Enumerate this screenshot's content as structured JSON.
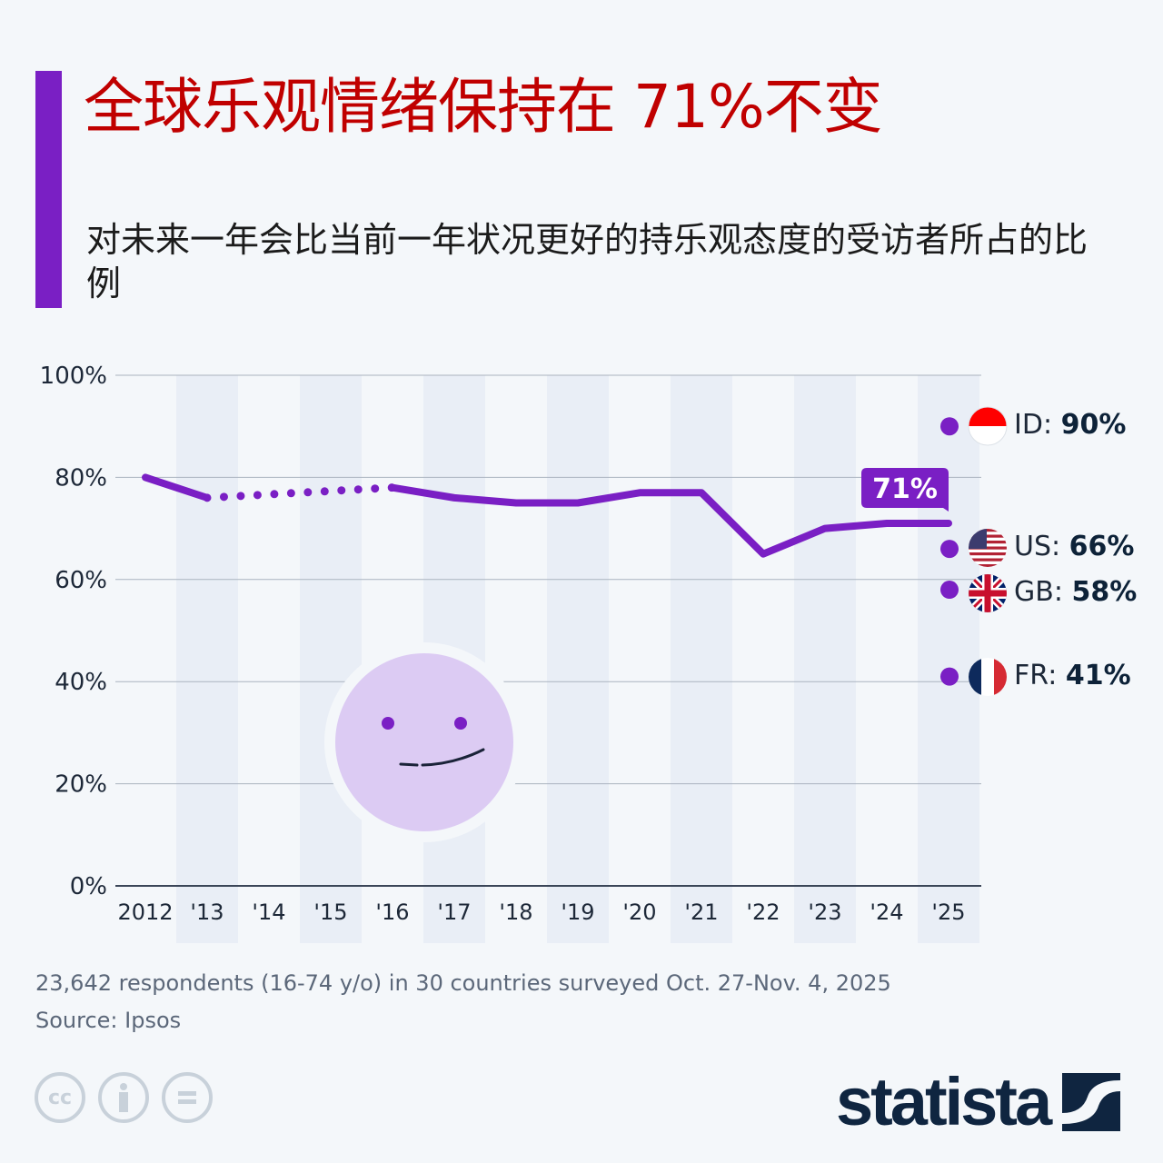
{
  "header": {
    "title": "全球乐观情绪保持在 71%不变",
    "subtitle": "对未来一年会比当前一年状况更好的持乐观态度的受访者所占的比例"
  },
  "colors": {
    "accent": "#7a1fc4",
    "title": "#c00000",
    "line": "#7a1fc4",
    "text": "#1d2838",
    "band": "#e9eef6"
  },
  "callout": {
    "label": "71%"
  },
  "legend": [
    {
      "code": "ID",
      "sep": ": ",
      "value": "90%",
      "flag": "indonesia-flag-icon"
    },
    {
      "code": "US",
      "sep": ": ",
      "value": "66%",
      "flag": "us-flag-icon"
    },
    {
      "code": "GB",
      "sep": ": ",
      "value": "58%",
      "flag": "uk-flag-icon"
    },
    {
      "code": "FR",
      "sep": ": ",
      "value": "41%",
      "flag": "france-flag-icon"
    }
  ],
  "footer": {
    "note": "23,642 respondents (16-74 y/o) in 30 countries surveyed Oct. 27-Nov. 4, 2025",
    "source": "Source: Ipsos",
    "cc_icons": [
      "cc-icon",
      "attribution-icon",
      "no-derivatives-icon"
    ],
    "logo": "statista"
  },
  "chart_data": {
    "type": "line",
    "title": "全球乐观情绪保持在 71%不变",
    "subtitle": "对未来一年会比当前一年状况更好的持乐观态度的受访者所占的比例",
    "xlabel": "",
    "ylabel": "",
    "ylim": [
      0,
      100
    ],
    "grid": true,
    "x": [
      "2012",
      "'13",
      "'14",
      "'15",
      "'16",
      "'17",
      "'18",
      "'19",
      "'20",
      "'21",
      "'22",
      "'23",
      "'24",
      "'25"
    ],
    "yticks": [
      "0%",
      "20%",
      "40%",
      "60%",
      "80%",
      "100%"
    ],
    "series": [
      {
        "name": "Global",
        "values": [
          80,
          76,
          null,
          null,
          78,
          76,
          75,
          75,
          77,
          77,
          65,
          70,
          71,
          71
        ],
        "note": "2013-2016 shown as dotted interpolation (no data 2014-2015)"
      }
    ],
    "annotations": [
      {
        "x": "'25",
        "label": "71%"
      },
      {
        "x": "'25",
        "country": "ID",
        "value": 90
      },
      {
        "x": "'25",
        "country": "US",
        "value": 66
      },
      {
        "x": "'25",
        "country": "GB",
        "value": 58
      },
      {
        "x": "'25",
        "country": "FR",
        "value": 41
      }
    ],
    "legend_position": "right"
  }
}
